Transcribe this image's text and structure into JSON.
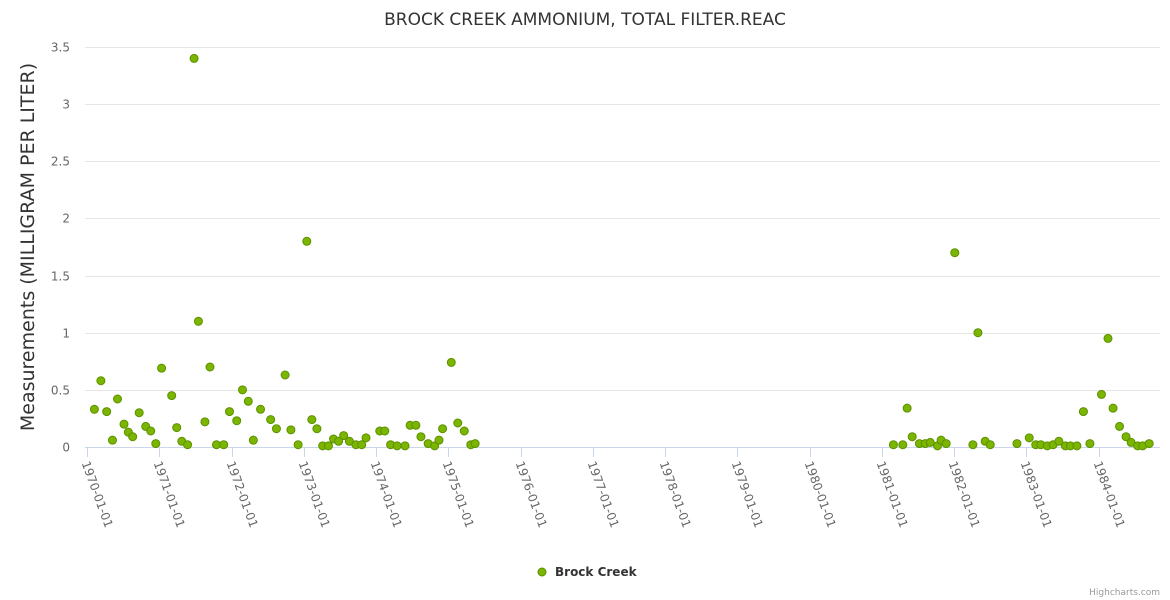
{
  "chart_data": {
    "type": "scatter",
    "title": "BROCK CREEK AMMONIUM, TOTAL FILTER.REAC",
    "xlabel": "",
    "ylabel": "Measurements (MILLIGRAM PER LITER)",
    "ylim": [
      0,
      3.5
    ],
    "xlim_years": [
      1969.97,
      1984.85
    ],
    "yticks": [
      "0",
      "0.5",
      "1",
      "1.5",
      "2",
      "2.5",
      "3",
      "3.5"
    ],
    "xticks": [
      "1970-01-01",
      "1971-01-01",
      "1972-01-01",
      "1973-01-01",
      "1974-01-01",
      "1975-01-01",
      "1976-01-01",
      "1977-01-01",
      "1978-01-01",
      "1979-01-01",
      "1980-01-01",
      "1981-01-01",
      "1982-01-01",
      "1983-01-01",
      "1984-01-01"
    ],
    "grid": true,
    "legend_position": "bottom-center",
    "series": [
      {
        "name": "Brock Creek",
        "color": "#7cb500",
        "x_unit": "decimal year",
        "points": [
          [
            1970.1,
            0.33
          ],
          [
            1970.19,
            0.58
          ],
          [
            1970.27,
            0.31
          ],
          [
            1970.35,
            0.06
          ],
          [
            1970.42,
            0.42
          ],
          [
            1970.51,
            0.2
          ],
          [
            1970.57,
            0.13
          ],
          [
            1970.63,
            0.09
          ],
          [
            1970.72,
            0.3
          ],
          [
            1970.81,
            0.18
          ],
          [
            1970.88,
            0.14
          ],
          [
            1970.95,
            0.03
          ],
          [
            1971.03,
            0.69
          ],
          [
            1971.17,
            0.45
          ],
          [
            1971.24,
            0.17
          ],
          [
            1971.31,
            0.05
          ],
          [
            1971.39,
            0.02
          ],
          [
            1971.48,
            3.4
          ],
          [
            1971.54,
            1.1
          ],
          [
            1971.63,
            0.22
          ],
          [
            1971.7,
            0.7
          ],
          [
            1971.79,
            0.02
          ],
          [
            1971.89,
            0.02
          ],
          [
            1971.97,
            0.31
          ],
          [
            1972.07,
            0.23
          ],
          [
            1972.15,
            0.5
          ],
          [
            1972.23,
            0.4
          ],
          [
            1972.3,
            0.06
          ],
          [
            1972.4,
            0.33
          ],
          [
            1972.54,
            0.24
          ],
          [
            1972.62,
            0.16
          ],
          [
            1972.74,
            0.63
          ],
          [
            1972.82,
            0.15
          ],
          [
            1972.92,
            0.02
          ],
          [
            1973.04,
            1.8
          ],
          [
            1973.11,
            0.24
          ],
          [
            1973.18,
            0.16
          ],
          [
            1973.26,
            0.01
          ],
          [
            1973.34,
            0.01
          ],
          [
            1973.41,
            0.07
          ],
          [
            1973.48,
            0.05
          ],
          [
            1973.55,
            0.1
          ],
          [
            1973.63,
            0.05
          ],
          [
            1973.72,
            0.02
          ],
          [
            1973.8,
            0.02
          ],
          [
            1973.86,
            0.08
          ],
          [
            1974.05,
            0.14
          ],
          [
            1974.12,
            0.14
          ],
          [
            1974.2,
            0.02
          ],
          [
            1974.29,
            0.01
          ],
          [
            1974.4,
            0.01
          ],
          [
            1974.47,
            0.19
          ],
          [
            1974.55,
            0.19
          ],
          [
            1974.62,
            0.09
          ],
          [
            1974.72,
            0.03
          ],
          [
            1974.81,
            0.01
          ],
          [
            1974.87,
            0.06
          ],
          [
            1974.92,
            0.16
          ],
          [
            1975.04,
            0.74
          ],
          [
            1975.13,
            0.21
          ],
          [
            1975.22,
            0.14
          ],
          [
            1975.31,
            0.02
          ],
          [
            1975.37,
            0.03
          ],
          [
            1981.16,
            0.02
          ],
          [
            1981.29,
            0.02
          ],
          [
            1981.35,
            0.34
          ],
          [
            1981.42,
            0.09
          ],
          [
            1981.52,
            0.03
          ],
          [
            1981.6,
            0.03
          ],
          [
            1981.67,
            0.04
          ],
          [
            1981.77,
            0.01
          ],
          [
            1981.82,
            0.06
          ],
          [
            1981.89,
            0.03
          ],
          [
            1982.01,
            1.7
          ],
          [
            1982.26,
            0.02
          ],
          [
            1982.33,
            1.0
          ],
          [
            1982.43,
            0.05
          ],
          [
            1982.5,
            0.02
          ],
          [
            1982.87,
            0.03
          ],
          [
            1983.04,
            0.08
          ],
          [
            1983.13,
            0.02
          ],
          [
            1983.2,
            0.02
          ],
          [
            1983.29,
            0.01
          ],
          [
            1983.37,
            0.02
          ],
          [
            1983.45,
            0.05
          ],
          [
            1983.54,
            0.01
          ],
          [
            1983.61,
            0.01
          ],
          [
            1983.7,
            0.01
          ],
          [
            1983.79,
            0.31
          ],
          [
            1983.88,
            0.03
          ],
          [
            1984.04,
            0.46
          ],
          [
            1984.13,
            0.95
          ],
          [
            1984.2,
            0.34
          ],
          [
            1984.29,
            0.18
          ],
          [
            1984.38,
            0.09
          ],
          [
            1984.45,
            0.04
          ],
          [
            1984.54,
            0.01
          ],
          [
            1984.61,
            0.01
          ],
          [
            1984.7,
            0.03
          ]
        ]
      }
    ],
    "credit": "Highcharts.com"
  }
}
